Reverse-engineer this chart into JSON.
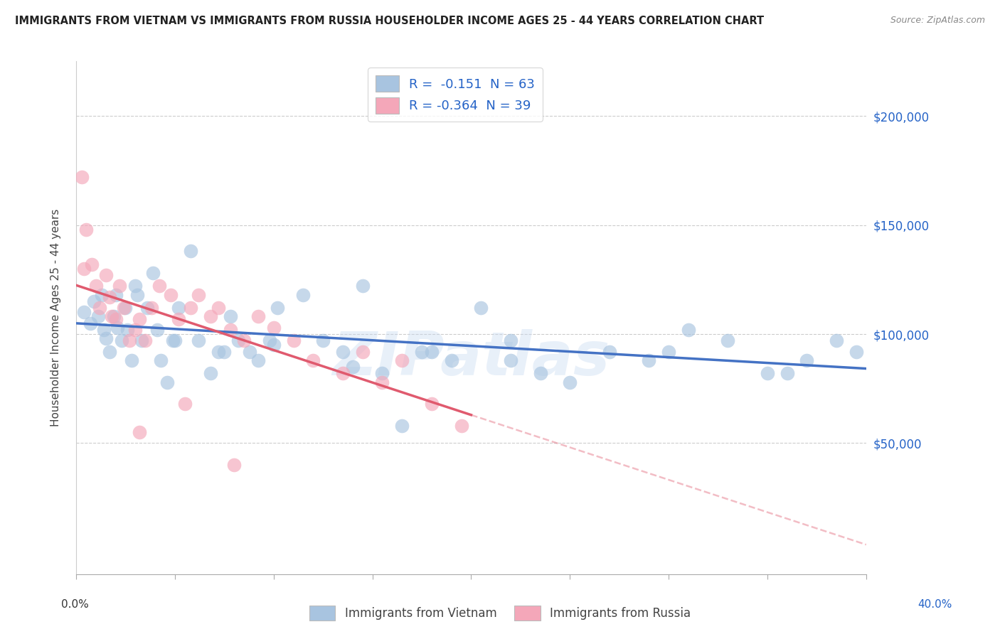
{
  "title": "IMMIGRANTS FROM VIETNAM VS IMMIGRANTS FROM RUSSIA HOUSEHOLDER INCOME AGES 25 - 44 YEARS CORRELATION CHART",
  "source": "Source: ZipAtlas.com",
  "ylabel": "Householder Income Ages 25 - 44 years",
  "xlim": [
    0.0,
    40.0
  ],
  "ylim": [
    -10000,
    225000
  ],
  "yticks": [
    0,
    50000,
    100000,
    150000,
    200000
  ],
  "ytick_labels": [
    "",
    "$50,000",
    "$100,000",
    "$150,000",
    "$200,000"
  ],
  "legend_r1": "R =  -0.151  N = 63",
  "legend_r2": "R = -0.364  N = 39",
  "legend_label1": "Immigrants from Vietnam",
  "legend_label2": "Immigrants from Russia",
  "color_vietnam": "#a8c4e0",
  "color_russia": "#f4a7b9",
  "color_line_vietnam": "#4472c4",
  "color_line_russia": "#e05a6e",
  "color_title": "#222222",
  "color_source": "#888888",
  "color_right_labels": "#2563c7",
  "watermark": "ZIPatlas",
  "vietnam_x": [
    0.4,
    0.7,
    0.9,
    1.1,
    1.3,
    1.4,
    1.5,
    1.7,
    1.9,
    2.0,
    2.1,
    2.3,
    2.5,
    2.6,
    2.8,
    3.0,
    3.1,
    3.3,
    3.6,
    3.9,
    4.1,
    4.3,
    4.6,
    4.9,
    5.2,
    5.8,
    6.2,
    6.8,
    7.2,
    7.8,
    8.2,
    8.8,
    9.2,
    9.8,
    10.2,
    11.5,
    12.5,
    13.5,
    14.5,
    15.5,
    16.5,
    17.5,
    19.0,
    20.5,
    22.0,
    23.5,
    25.0,
    27.0,
    29.0,
    31.0,
    33.0,
    35.0,
    37.0,
    38.5,
    39.5,
    5.0,
    7.5,
    10.0,
    14.0,
    18.0,
    22.0,
    30.0,
    36.0
  ],
  "vietnam_y": [
    110000,
    105000,
    115000,
    108000,
    118000,
    102000,
    98000,
    92000,
    108000,
    118000,
    103000,
    97000,
    112000,
    102000,
    88000,
    122000,
    118000,
    97000,
    112000,
    128000,
    102000,
    88000,
    78000,
    97000,
    112000,
    138000,
    97000,
    82000,
    92000,
    108000,
    97000,
    92000,
    88000,
    97000,
    112000,
    118000,
    97000,
    92000,
    122000,
    82000,
    58000,
    92000,
    88000,
    112000,
    97000,
    82000,
    78000,
    92000,
    88000,
    102000,
    97000,
    82000,
    88000,
    97000,
    92000,
    97000,
    92000,
    95000,
    85000,
    92000,
    88000,
    92000,
    82000
  ],
  "russia_x": [
    0.3,
    0.5,
    0.8,
    1.0,
    1.2,
    1.5,
    1.7,
    2.0,
    2.2,
    2.4,
    2.7,
    3.0,
    3.2,
    3.5,
    3.8,
    4.2,
    4.8,
    5.2,
    5.8,
    6.2,
    6.8,
    7.2,
    7.8,
    8.5,
    9.2,
    10.0,
    11.0,
    12.0,
    13.5,
    14.5,
    15.5,
    16.5,
    18.0,
    19.5,
    0.4,
    1.8,
    3.2,
    5.5,
    8.0
  ],
  "russia_y": [
    172000,
    148000,
    132000,
    122000,
    112000,
    127000,
    117000,
    107000,
    122000,
    112000,
    97000,
    102000,
    107000,
    97000,
    112000,
    122000,
    118000,
    107000,
    112000,
    118000,
    108000,
    112000,
    102000,
    97000,
    108000,
    103000,
    97000,
    88000,
    82000,
    92000,
    78000,
    88000,
    68000,
    58000,
    130000,
    108000,
    55000,
    68000,
    40000
  ]
}
